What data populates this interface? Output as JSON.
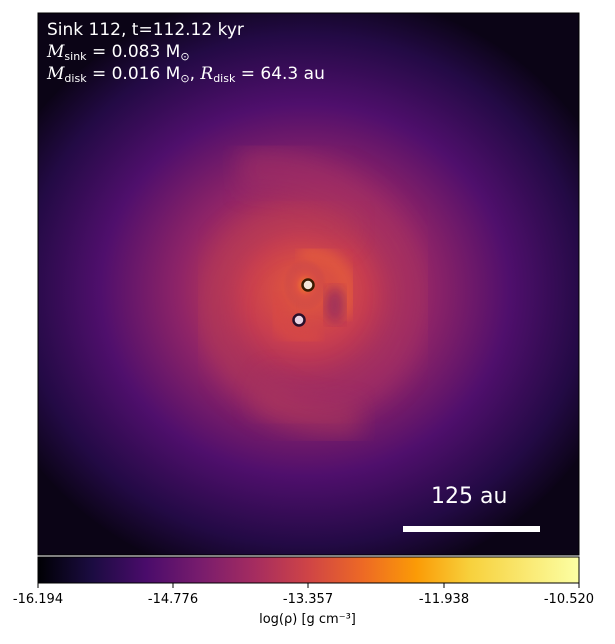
{
  "annotation": {
    "title": "Sink 112, t=112.12 kyr",
    "sink_mass_label": "M",
    "sink_mass_sub": "sink",
    "sink_mass_value": " = 0.083 M",
    "sun_sub": "⊙",
    "disk_mass_label": "M",
    "disk_mass_sub": "disk",
    "disk_mass_value": " = 0.016 M",
    "disk_radius_label": "R",
    "disk_radius_sub": "disk",
    "disk_radius_value": " = 64.3 au"
  },
  "scale_bar": {
    "label": "125 au"
  },
  "colorbar": {
    "label": "log(ρ) [g cm⁻³]",
    "ticks": [
      "-16.194",
      "-14.776",
      "-13.357",
      "-11.938",
      "-10.520"
    ],
    "colormap": "inferno"
  },
  "sinks": [
    {
      "name": "sink-a",
      "fill": "#f3e6d8",
      "edge": "#3a1b00"
    },
    {
      "name": "sink-b",
      "fill": "#e8d4e4",
      "edge": "#2a0f2a"
    }
  ]
}
